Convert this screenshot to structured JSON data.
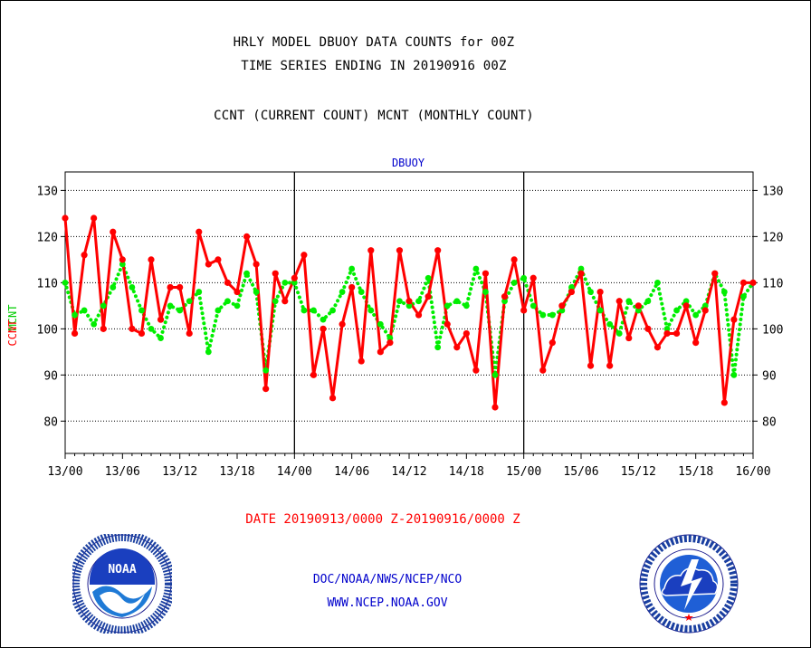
{
  "header": {
    "line1": "HRLY MODEL DBUOY DATA COUNTS for 00Z",
    "line2": "TIME SERIES ENDING IN 20190916 00Z",
    "line3": "CCNT (CURRENT COUNT) MCNT (MONTHLY COUNT)"
  },
  "footer": {
    "date_range": "DATE 20190913/0000 Z-20190916/0000 Z",
    "org": "DOC/NOAA/NWS/NCEP/NCO",
    "url": "WWW.NCEP.NOAA.GOV"
  },
  "logos": {
    "left": {
      "label": "NOAA",
      "icon": "noaa-logo"
    },
    "right": {
      "icon": "nws-logo"
    }
  },
  "chart_data": {
    "type": "line",
    "title": "DBUOY",
    "ylabel_left": [
      "CCNT",
      "MCNT"
    ],
    "ylim": [
      73,
      134
    ],
    "yticks": [
      80,
      90,
      100,
      110,
      120,
      130
    ],
    "xlim": [
      0,
      72
    ],
    "xtick_labels": [
      "13/00",
      "13/06",
      "13/12",
      "13/18",
      "14/00",
      "14/06",
      "14/12",
      "14/18",
      "15/00",
      "15/06",
      "15/12",
      "15/18",
      "16/00"
    ],
    "grid": true,
    "day_dividers": [
      24,
      48
    ],
    "colors": {
      "ccnt": "#ff0000",
      "mcnt": "#00ee00"
    },
    "series": [
      {
        "name": "CCNT",
        "style": "solid",
        "values": [
          124,
          99,
          116,
          124,
          100,
          121,
          115,
          100,
          99,
          115,
          102,
          109,
          109,
          99,
          121,
          114,
          115,
          110,
          108,
          120,
          114,
          87,
          112,
          106,
          111,
          116,
          90,
          100,
          85,
          101,
          109,
          93,
          117,
          95,
          97,
          117,
          106,
          103,
          107,
          117,
          101,
          96,
          99,
          91,
          112,
          83,
          107,
          115,
          104,
          111,
          91,
          97,
          105,
          108,
          112,
          92,
          108,
          92,
          106,
          98,
          105,
          100,
          96,
          99,
          99,
          105,
          97,
          104,
          112,
          84,
          102,
          110,
          110
        ]
      },
      {
        "name": "MCNT",
        "style": "dotted",
        "values": [
          110,
          103,
          104,
          101,
          105,
          109,
          114,
          109,
          104,
          100,
          98,
          105,
          104,
          106,
          108,
          95,
          104,
          106,
          105,
          112,
          108,
          91,
          106,
          110,
          110,
          104,
          104,
          102,
          104,
          108,
          113,
          108,
          104,
          101,
          98,
          106,
          105,
          106,
          111,
          96,
          105,
          106,
          105,
          113,
          108,
          90,
          106,
          110,
          111,
          105,
          103,
          103,
          104,
          109,
          113,
          108,
          104,
          101,
          99,
          106,
          104,
          106,
          110,
          100,
          104,
          106,
          103,
          105,
          112,
          108,
          90,
          107,
          110
        ]
      }
    ]
  }
}
